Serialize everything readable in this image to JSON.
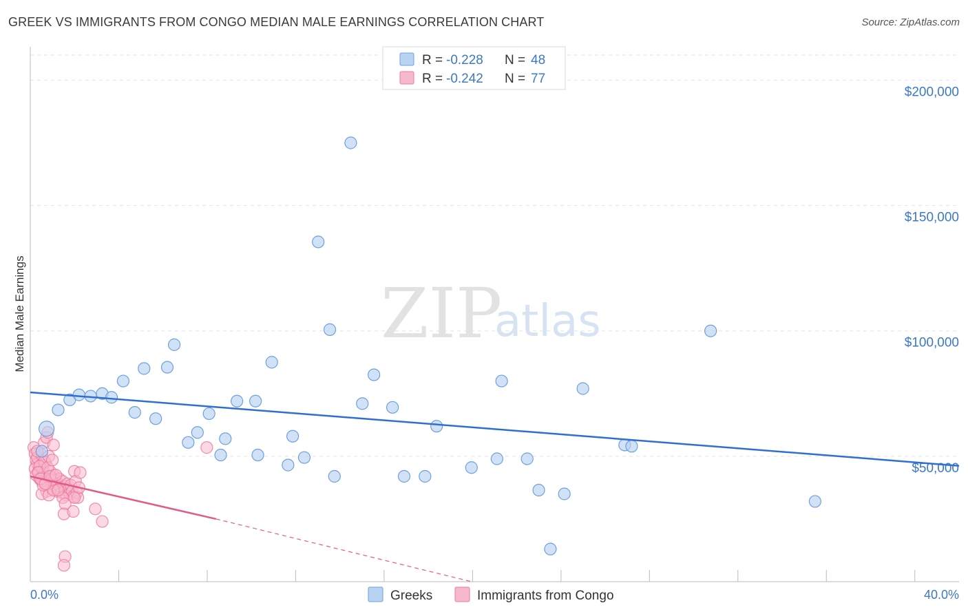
{
  "header": {
    "title": "GREEK VS IMMIGRANTS FROM CONGO MEDIAN MALE EARNINGS CORRELATION CHART",
    "source": "Source: ZipAtlas.com"
  },
  "watermark": {
    "zip": "ZIP",
    "atlas": "atlas"
  },
  "colors": {
    "greeks_fill": "#b9d3f3",
    "greeks_stroke": "#6d9fe0",
    "greeks_line": "#2f6fd0",
    "congo_fill": "#f7b8cc",
    "congo_stroke": "#ec7aa0",
    "congo_line": "#e05a8a",
    "grid": "#e3e3e3",
    "tick_text": "#3b78c8"
  },
  "legend_top": {
    "rows": [
      {
        "r_label": "R = ",
        "r_value": "-0.228",
        "n_label": "N = ",
        "n_value": "48"
      },
      {
        "r_label": "R = ",
        "r_value": "-0.242",
        "n_label": "N = ",
        "n_value": "77"
      }
    ]
  },
  "legend_bottom": {
    "items": [
      {
        "label": "Greeks"
      },
      {
        "label": "Immigrants from Congo"
      }
    ]
  },
  "chart_data": {
    "type": "scatter",
    "title": "GREEK VS IMMIGRANTS FROM CONGO MEDIAN MALE EARNINGS CORRELATION CHART",
    "xlabel": "",
    "ylabel": "Median Male Earnings",
    "xlim": [
      0,
      40
    ],
    "ylim": [
      0,
      210000
    ],
    "x_tick_labels": [
      "0.0%",
      "40.0%"
    ],
    "y_ticks": [
      50000,
      100000,
      150000,
      200000
    ],
    "y_tick_labels": [
      "$50,000",
      "$100,000",
      "$150,000",
      "$200,000"
    ],
    "grid": true,
    "legend_position": "top-center",
    "series": [
      {
        "name": "Greeks",
        "R": -0.228,
        "N": 48,
        "trend": {
          "x": [
            0,
            40
          ],
          "y": [
            75500,
            46200
          ],
          "dashed_extension": false
        },
        "points": [
          {
            "x": 0.7,
            "y": 61000,
            "big": true
          },
          {
            "x": 0.5,
            "y": 52000
          },
          {
            "x": 1.2,
            "y": 68500
          },
          {
            "x": 1.7,
            "y": 72500
          },
          {
            "x": 2.1,
            "y": 74500
          },
          {
            "x": 2.6,
            "y": 74000
          },
          {
            "x": 3.1,
            "y": 75000
          },
          {
            "x": 3.5,
            "y": 73500
          },
          {
            "x": 4.0,
            "y": 80000
          },
          {
            "x": 4.5,
            "y": 67500
          },
          {
            "x": 4.9,
            "y": 85000
          },
          {
            "x": 5.4,
            "y": 65000
          },
          {
            "x": 5.9,
            "y": 85500
          },
          {
            "x": 6.2,
            "y": 94500
          },
          {
            "x": 6.8,
            "y": 55500
          },
          {
            "x": 7.2,
            "y": 59500
          },
          {
            "x": 7.7,
            "y": 67000
          },
          {
            "x": 8.2,
            "y": 50500
          },
          {
            "x": 8.4,
            "y": 57000
          },
          {
            "x": 8.9,
            "y": 72000
          },
          {
            "x": 9.8,
            "y": 50500
          },
          {
            "x": 9.7,
            "y": 72000
          },
          {
            "x": 10.4,
            "y": 87500
          },
          {
            "x": 11.1,
            "y": 46500
          },
          {
            "x": 11.3,
            "y": 58000
          },
          {
            "x": 11.8,
            "y": 49500
          },
          {
            "x": 12.4,
            "y": 135500
          },
          {
            "x": 12.9,
            "y": 100500
          },
          {
            "x": 13.1,
            "y": 42000
          },
          {
            "x": 13.8,
            "y": 175000
          },
          {
            "x": 14.3,
            "y": 71000
          },
          {
            "x": 14.8,
            "y": 82500
          },
          {
            "x": 15.6,
            "y": 69500
          },
          {
            "x": 16.1,
            "y": 42000
          },
          {
            "x": 17.0,
            "y": 42000
          },
          {
            "x": 17.5,
            "y": 62000
          },
          {
            "x": 19.0,
            "y": 45500
          },
          {
            "x": 20.3,
            "y": 80000
          },
          {
            "x": 20.1,
            "y": 49000
          },
          {
            "x": 21.4,
            "y": 49000
          },
          {
            "x": 21.9,
            "y": 36500
          },
          {
            "x": 22.4,
            "y": 13000
          },
          {
            "x": 23.0,
            "y": 35000
          },
          {
            "x": 23.8,
            "y": 77000
          },
          {
            "x": 25.6,
            "y": 54500
          },
          {
            "x": 25.9,
            "y": 54000
          },
          {
            "x": 29.3,
            "y": 100000
          },
          {
            "x": 33.8,
            "y": 32000
          }
        ]
      },
      {
        "name": "Immigrants from Congo",
        "R": -0.242,
        "N": 77,
        "trend": {
          "x": [
            0,
            8
          ],
          "y": [
            42000,
            25000
          ],
          "dashed_extension_to": {
            "x": 19,
            "y": 0
          }
        },
        "points": [
          {
            "x": 0.15,
            "y": 53500
          },
          {
            "x": 0.2,
            "y": 51000
          },
          {
            "x": 0.25,
            "y": 48500
          },
          {
            "x": 0.3,
            "y": 47000
          },
          {
            "x": 0.2,
            "y": 45000
          },
          {
            "x": 0.35,
            "y": 44000
          },
          {
            "x": 0.25,
            "y": 42500
          },
          {
            "x": 0.4,
            "y": 41000
          },
          {
            "x": 0.3,
            "y": 49500
          },
          {
            "x": 0.5,
            "y": 50500
          },
          {
            "x": 0.45,
            "y": 46500
          },
          {
            "x": 0.55,
            "y": 44500
          },
          {
            "x": 0.6,
            "y": 43000
          },
          {
            "x": 0.5,
            "y": 40000
          },
          {
            "x": 0.7,
            "y": 42000
          },
          {
            "x": 0.65,
            "y": 47500
          },
          {
            "x": 0.75,
            "y": 38500
          },
          {
            "x": 0.8,
            "y": 41500
          },
          {
            "x": 0.85,
            "y": 44000
          },
          {
            "x": 0.9,
            "y": 39500
          },
          {
            "x": 0.95,
            "y": 37000
          },
          {
            "x": 1.0,
            "y": 42500
          },
          {
            "x": 1.05,
            "y": 40500
          },
          {
            "x": 1.1,
            "y": 38000
          },
          {
            "x": 1.15,
            "y": 36000
          },
          {
            "x": 1.2,
            "y": 39000
          },
          {
            "x": 1.25,
            "y": 41000
          },
          {
            "x": 1.3,
            "y": 37500
          },
          {
            "x": 1.35,
            "y": 35500
          },
          {
            "x": 1.4,
            "y": 40000
          },
          {
            "x": 1.45,
            "y": 38000
          },
          {
            "x": 1.5,
            "y": 36500
          },
          {
            "x": 1.55,
            "y": 34500
          },
          {
            "x": 1.6,
            "y": 39000
          },
          {
            "x": 1.65,
            "y": 37000
          },
          {
            "x": 1.7,
            "y": 35000
          },
          {
            "x": 1.75,
            "y": 38500
          },
          {
            "x": 1.8,
            "y": 36000
          },
          {
            "x": 1.85,
            "y": 34000
          },
          {
            "x": 1.9,
            "y": 44000
          },
          {
            "x": 1.95,
            "y": 40000
          },
          {
            "x": 2.0,
            "y": 35500
          },
          {
            "x": 2.05,
            "y": 33500
          },
          {
            "x": 2.1,
            "y": 37500
          },
          {
            "x": 2.15,
            "y": 43500
          },
          {
            "x": 0.6,
            "y": 48000
          },
          {
            "x": 0.4,
            "y": 46000
          },
          {
            "x": 0.35,
            "y": 43500
          },
          {
            "x": 0.7,
            "y": 36000
          },
          {
            "x": 0.5,
            "y": 35000
          },
          {
            "x": 0.8,
            "y": 34500
          },
          {
            "x": 1.0,
            "y": 36500
          },
          {
            "x": 0.9,
            "y": 40500
          },
          {
            "x": 0.55,
            "y": 38500
          },
          {
            "x": 0.45,
            "y": 41000
          },
          {
            "x": 0.65,
            "y": 39000
          },
          {
            "x": 0.75,
            "y": 45500
          },
          {
            "x": 0.85,
            "y": 42000
          },
          {
            "x": 0.3,
            "y": 52000
          },
          {
            "x": 0.6,
            "y": 55500
          },
          {
            "x": 0.8,
            "y": 50000
          },
          {
            "x": 0.95,
            "y": 48500
          },
          {
            "x": 0.7,
            "y": 57500
          },
          {
            "x": 0.75,
            "y": 59500
          },
          {
            "x": 1.0,
            "y": 54500
          },
          {
            "x": 1.4,
            "y": 33500
          },
          {
            "x": 1.5,
            "y": 31000
          },
          {
            "x": 1.45,
            "y": 27000
          },
          {
            "x": 1.85,
            "y": 28000
          },
          {
            "x": 1.9,
            "y": 33500
          },
          {
            "x": 2.8,
            "y": 29000
          },
          {
            "x": 3.1,
            "y": 24000
          },
          {
            "x": 1.5,
            "y": 10000
          },
          {
            "x": 1.45,
            "y": 6500
          },
          {
            "x": 7.6,
            "y": 53500
          },
          {
            "x": 1.2,
            "y": 36500
          },
          {
            "x": 1.1,
            "y": 42500
          }
        ]
      }
    ]
  }
}
